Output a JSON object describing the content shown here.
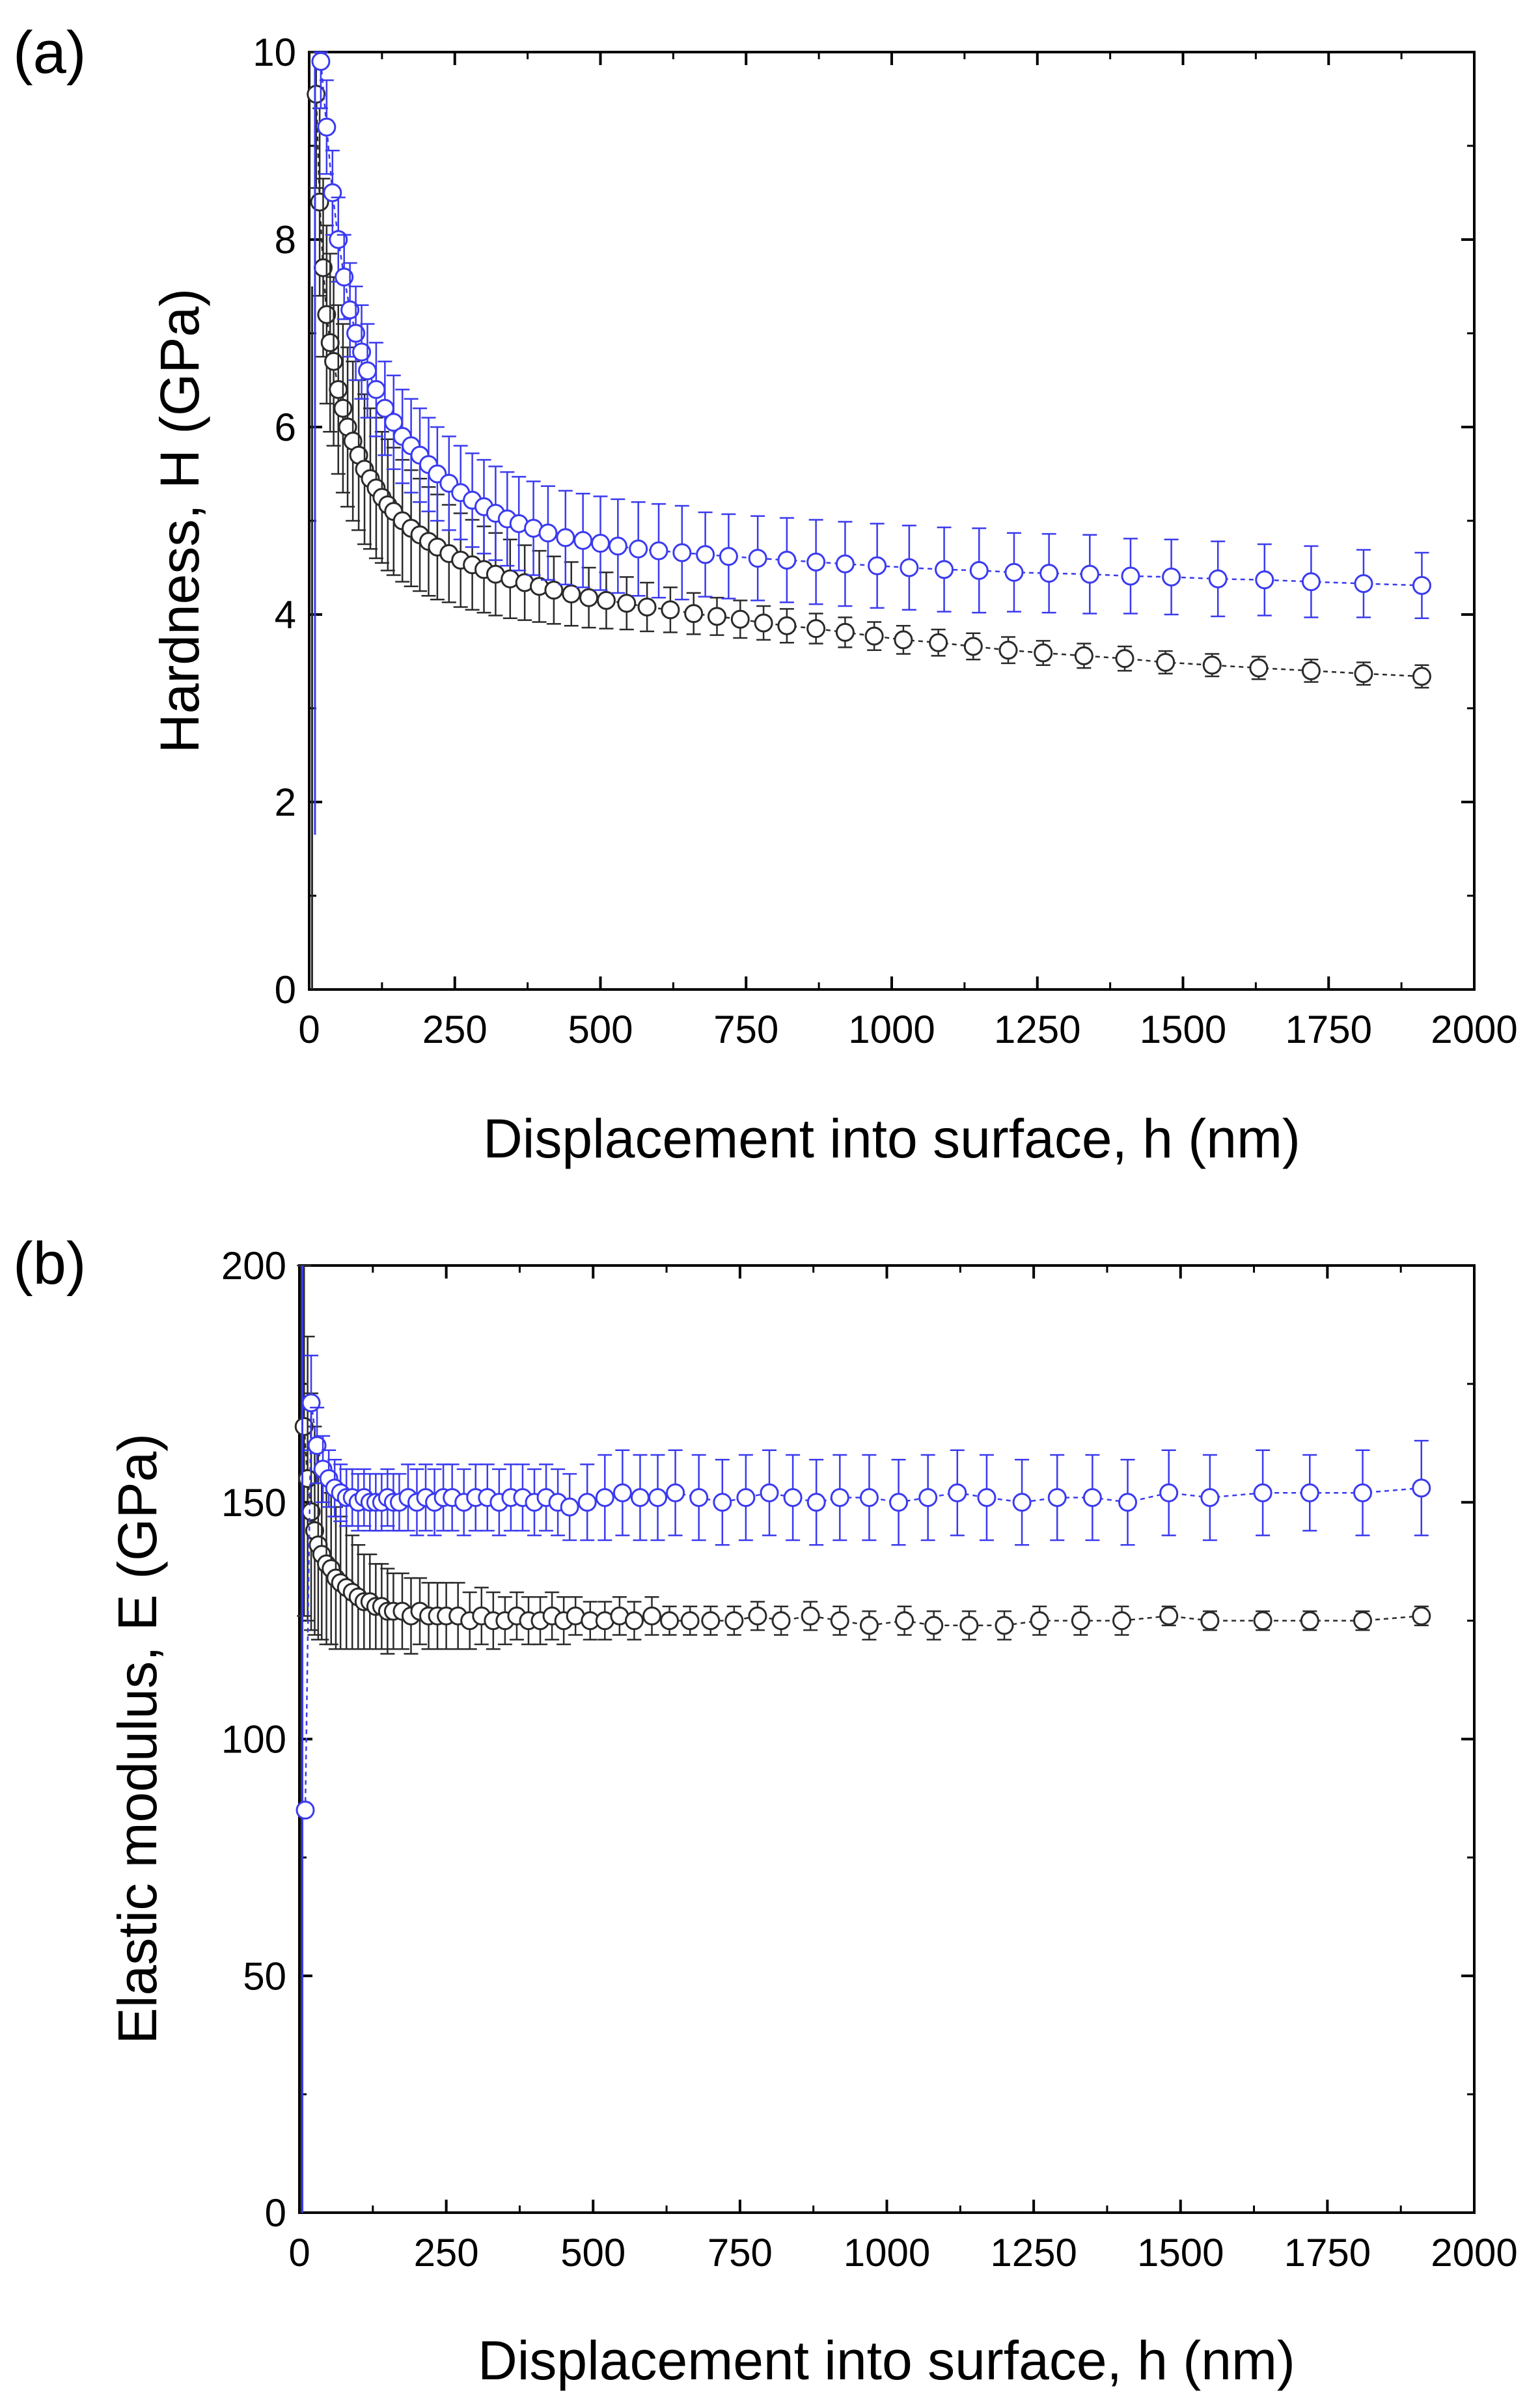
{
  "figure": {
    "colors": {
      "blue": "#3a3af0",
      "black": "#2a2a2a"
    }
  },
  "chart_data": [
    {
      "type": "scatter",
      "panel_label": "(a)",
      "title": "",
      "xlabel": "Displacement into surface, h (nm)",
      "ylabel": "Hardness, H (GPa)",
      "xlim": [
        0,
        2000
      ],
      "ylim": [
        0,
        10
      ],
      "xticks": [
        0,
        250,
        500,
        750,
        1000,
        1250,
        1500,
        1750,
        2000
      ],
      "yticks": [
        0,
        2,
        4,
        6,
        8,
        10
      ],
      "legend": "none",
      "series": [
        {
          "name": "blue",
          "color": "#3a3af0",
          "x": [
            20,
            30,
            40,
            50,
            60,
            70,
            80,
            90,
            100,
            115,
            130,
            145,
            160,
            175,
            190,
            205,
            220,
            240,
            260,
            280,
            300,
            320,
            340,
            360,
            385,
            410,
            440,
            470,
            500,
            530,
            565,
            600,
            640,
            680,
            720,
            770,
            820,
            870,
            920,
            975,
            1030,
            1090,
            1150,
            1210,
            1270,
            1340,
            1410,
            1480,
            1560,
            1640,
            1720,
            1810,
            1910
          ],
          "y": [
            9.9,
            9.2,
            8.5,
            8.0,
            7.6,
            7.25,
            7.0,
            6.8,
            6.6,
            6.4,
            6.2,
            6.05,
            5.9,
            5.8,
            5.7,
            5.6,
            5.5,
            5.4,
            5.3,
            5.22,
            5.15,
            5.08,
            5.02,
            4.97,
            4.92,
            4.87,
            4.82,
            4.79,
            4.76,
            4.73,
            4.7,
            4.68,
            4.66,
            4.64,
            4.62,
            4.6,
            4.58,
            4.56,
            4.54,
            4.52,
            4.5,
            4.48,
            4.47,
            4.45,
            4.44,
            4.43,
            4.41,
            4.4,
            4.38,
            4.37,
            4.35,
            4.33,
            4.31
          ],
          "yerr": [
            0.5,
            0.5,
            0.45,
            0.45,
            0.45,
            0.5,
            0.5,
            0.5,
            0.5,
            0.5,
            0.5,
            0.5,
            0.5,
            0.5,
            0.5,
            0.5,
            0.5,
            0.5,
            0.5,
            0.5,
            0.5,
            0.5,
            0.5,
            0.5,
            0.5,
            0.5,
            0.5,
            0.5,
            0.5,
            0.5,
            0.5,
            0.5,
            0.5,
            0.45,
            0.45,
            0.45,
            0.45,
            0.45,
            0.45,
            0.45,
            0.45,
            0.45,
            0.45,
            0.42,
            0.42,
            0.42,
            0.4,
            0.4,
            0.4,
            0.38,
            0.38,
            0.36,
            0.35
          ],
          "spike": {
            "x": 10,
            "y_low": 1.65,
            "y_high": 9.9
          }
        },
        {
          "name": "black",
          "color": "#2a2a2a",
          "x": [
            12,
            18,
            24,
            30,
            36,
            42,
            50,
            58,
            66,
            75,
            85,
            95,
            105,
            115,
            125,
            135,
            145,
            160,
            175,
            190,
            205,
            220,
            240,
            260,
            280,
            300,
            320,
            345,
            370,
            395,
            420,
            450,
            480,
            510,
            545,
            580,
            620,
            660,
            700,
            740,
            780,
            820,
            870,
            920,
            970,
            1020,
            1080,
            1140,
            1200,
            1260,
            1330,
            1400,
            1470,
            1550,
            1630,
            1720,
            1810,
            1910
          ],
          "y": [
            9.55,
            8.4,
            7.7,
            7.2,
            6.9,
            6.7,
            6.4,
            6.2,
            6.0,
            5.85,
            5.7,
            5.55,
            5.45,
            5.35,
            5.25,
            5.17,
            5.1,
            5.0,
            4.92,
            4.85,
            4.78,
            4.72,
            4.65,
            4.58,
            4.53,
            4.48,
            4.43,
            4.38,
            4.34,
            4.3,
            4.26,
            4.22,
            4.18,
            4.15,
            4.12,
            4.08,
            4.05,
            4.01,
            3.98,
            3.95,
            3.91,
            3.88,
            3.85,
            3.81,
            3.77,
            3.73,
            3.7,
            3.66,
            3.62,
            3.59,
            3.56,
            3.53,
            3.49,
            3.46,
            3.43,
            3.4,
            3.37,
            3.34
          ],
          "yerr": [
            1.0,
            1.0,
            0.95,
            0.95,
            0.95,
            0.9,
            0.9,
            0.9,
            0.85,
            0.85,
            0.8,
            0.8,
            0.75,
            0.75,
            0.7,
            0.7,
            0.68,
            0.65,
            0.62,
            0.6,
            0.58,
            0.56,
            0.52,
            0.5,
            0.48,
            0.46,
            0.44,
            0.42,
            0.4,
            0.38,
            0.36,
            0.34,
            0.32,
            0.3,
            0.28,
            0.26,
            0.24,
            0.22,
            0.2,
            0.2,
            0.18,
            0.18,
            0.16,
            0.16,
            0.15,
            0.15,
            0.14,
            0.14,
            0.14,
            0.13,
            0.13,
            0.13,
            0.12,
            0.12,
            0.12,
            0.12,
            0.12,
            0.12
          ],
          "spike": {
            "x": 5,
            "y_low": 0,
            "y_high": 7.5
          }
        }
      ]
    },
    {
      "type": "scatter",
      "panel_label": "(b)",
      "title": "",
      "xlabel": "Displacement into surface, h (nm)",
      "ylabel": "Elastic modulus, E (GPa)",
      "xlim": [
        0,
        2000
      ],
      "ylim": [
        0,
        200
      ],
      "xticks": [
        0,
        250,
        500,
        750,
        1000,
        1250,
        1500,
        1750,
        2000
      ],
      "yticks": [
        0,
        50,
        100,
        150,
        200
      ],
      "legend": "none",
      "series": [
        {
          "name": "blue",
          "color": "#3a3af0",
          "x": [
            10,
            20,
            30,
            40,
            50,
            60,
            70,
            80,
            90,
            100,
            110,
            120,
            130,
            140,
            150,
            160,
            170,
            185,
            200,
            215,
            230,
            245,
            260,
            280,
            300,
            320,
            340,
            360,
            380,
            400,
            420,
            440,
            460,
            490,
            520,
            550,
            580,
            610,
            640,
            680,
            720,
            760,
            800,
            840,
            880,
            920,
            970,
            1020,
            1070,
            1120,
            1170,
            1230,
            1290,
            1350,
            1410,
            1480,
            1550,
            1640,
            1720,
            1810,
            1910
          ],
          "y": [
            85,
            171,
            162,
            157,
            155,
            153,
            152,
            151,
            151,
            150,
            151,
            150,
            150,
            150,
            151,
            150,
            150,
            151,
            150,
            151,
            150,
            151,
            151,
            150,
            151,
            151,
            150,
            151,
            151,
            150,
            151,
            150,
            149,
            150,
            151,
            152,
            151,
            151,
            152,
            151,
            150,
            151,
            152,
            151,
            150,
            151,
            151,
            150,
            151,
            152,
            151,
            150,
            151,
            151,
            150,
            152,
            151,
            152,
            152,
            152,
            153
          ],
          "yerr": [
            0,
            10,
            8,
            7,
            6,
            6,
            6,
            6,
            6,
            6,
            6,
            6,
            6,
            6,
            6,
            6,
            6,
            7,
            7,
            7,
            7,
            7,
            7,
            7,
            7,
            7,
            7,
            7,
            7,
            7,
            7,
            7,
            7,
            8,
            9,
            9,
            9,
            9,
            9,
            9,
            9,
            9,
            9,
            9,
            9,
            9,
            9,
            9,
            9,
            9,
            9,
            9,
            9,
            9,
            9,
            9,
            9,
            9,
            8,
            9,
            10
          ],
          "spike": {
            "x": 5,
            "y_low": 0,
            "y_high": 200
          }
        },
        {
          "name": "black",
          "color": "#2a2a2a",
          "x": [
            8,
            14,
            20,
            26,
            32,
            38,
            46,
            54,
            62,
            70,
            80,
            90,
            100,
            110,
            120,
            130,
            140,
            150,
            160,
            175,
            190,
            205,
            220,
            235,
            250,
            270,
            290,
            310,
            330,
            350,
            370,
            390,
            410,
            430,
            450,
            470,
            495,
            520,
            545,
            570,
            600,
            630,
            665,
            700,
            740,
            780,
            820,
            870,
            920,
            970,
            1030,
            1080,
            1140,
            1200,
            1260,
            1330,
            1400,
            1480,
            1550,
            1640,
            1720,
            1810,
            1910
          ],
          "y": [
            166,
            155,
            148,
            144,
            141,
            139,
            137,
            136,
            134,
            133,
            132,
            131,
            130,
            129,
            129,
            128,
            128,
            127,
            127,
            127,
            126,
            127,
            126,
            126,
            126,
            126,
            125,
            126,
            125,
            125,
            126,
            125,
            125,
            126,
            125,
            126,
            125,
            125,
            126,
            125,
            126,
            125,
            125,
            125,
            125,
            126,
            125,
            126,
            125,
            124,
            125,
            124,
            124,
            124,
            125,
            125,
            125,
            126,
            125,
            125,
            125,
            125,
            126
          ],
          "yerr": [
            40,
            30,
            25,
            22,
            20,
            18,
            17,
            16,
            15,
            14,
            13,
            12,
            11,
            10,
            10,
            9,
            9,
            9,
            8,
            8,
            8,
            7,
            7,
            7,
            7,
            7,
            6,
            6,
            6,
            5,
            5,
            5,
            5,
            5,
            5,
            4,
            4,
            4,
            4,
            4,
            4,
            3,
            3,
            3,
            3,
            3,
            3,
            3,
            3,
            3,
            3,
            3,
            3,
            3,
            3,
            3,
            3,
            2,
            2,
            2,
            2,
            2,
            2
          ],
          "spike": {
            "x": 3,
            "y_low": 0,
            "y_high": 200
          }
        }
      ]
    }
  ]
}
